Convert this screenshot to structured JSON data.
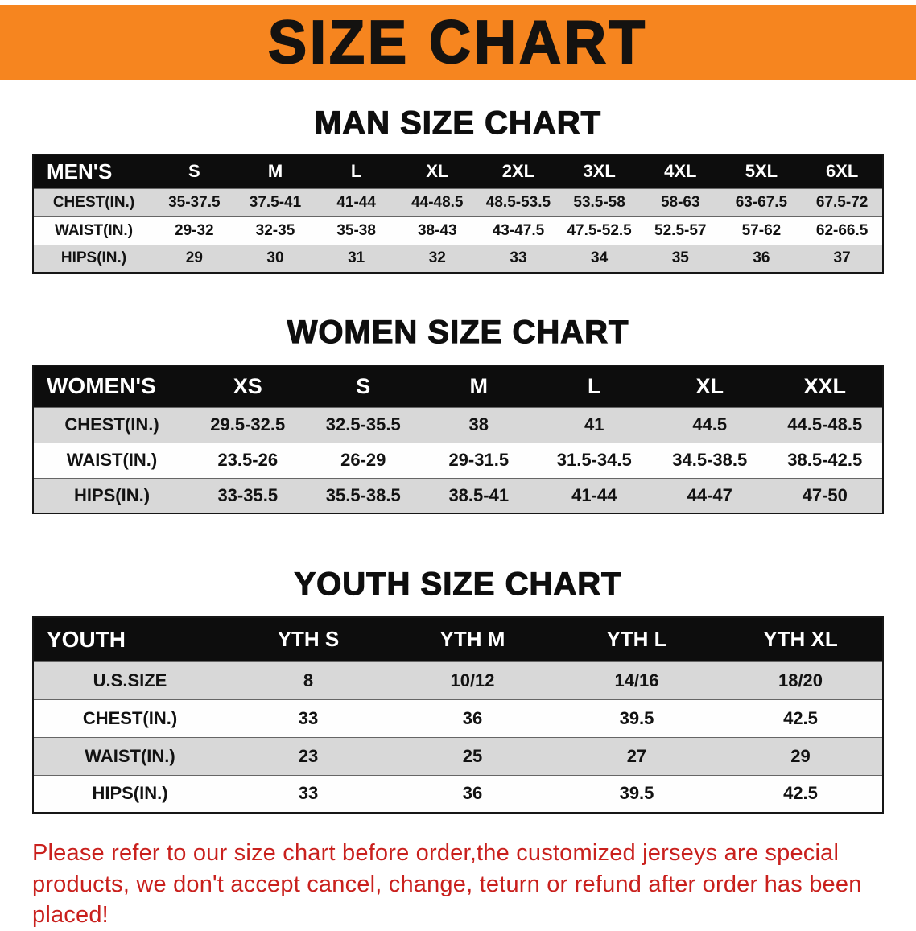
{
  "banner": {
    "title": "SIZE CHART"
  },
  "sections": [
    {
      "heading": "MAN SIZE CHART",
      "table": {
        "header": [
          "MEN'S",
          "S",
          "M",
          "L",
          "XL",
          "2XL",
          "3XL",
          "4XL",
          "5XL",
          "6XL"
        ],
        "rows": [
          [
            "CHEST(IN.)",
            "35-37.5",
            "37.5-41",
            "41-44",
            "44-48.5",
            "48.5-53.5",
            "53.5-58",
            "58-63",
            "63-67.5",
            "67.5-72"
          ],
          [
            "WAIST(IN.)",
            "29-32",
            "32-35",
            "35-38",
            "38-43",
            "43-47.5",
            "47.5-52.5",
            "52.5-57",
            "57-62",
            "62-66.5"
          ],
          [
            "HIPS(IN.)",
            "29",
            "30",
            "31",
            "32",
            "33",
            "34",
            "35",
            "36",
            "37"
          ]
        ]
      }
    },
    {
      "heading": "WOMEN SIZE CHART",
      "table": {
        "header": [
          "WOMEN'S",
          "XS",
          "S",
          "M",
          "L",
          "XL",
          "XXL"
        ],
        "rows": [
          [
            "CHEST(IN.)",
            "29.5-32.5",
            "32.5-35.5",
            "38",
            "41",
            "44.5",
            "44.5-48.5"
          ],
          [
            "WAIST(IN.)",
            "23.5-26",
            "26-29",
            "29-31.5",
            "31.5-34.5",
            "34.5-38.5",
            "38.5-42.5"
          ],
          [
            "HIPS(IN.)",
            "33-35.5",
            "35.5-38.5",
            "38.5-41",
            "41-44",
            "44-47",
            "47-50"
          ]
        ]
      }
    },
    {
      "heading": "YOUTH SIZE CHART",
      "table": {
        "header": [
          "YOUTH",
          "YTH S",
          "YTH M",
          "YTH L",
          "YTH XL"
        ],
        "rows": [
          [
            "U.S.SIZE",
            "8",
            "10/12",
            "14/16",
            "18/20"
          ],
          [
            "CHEST(IN.)",
            "33",
            "36",
            "39.5",
            "42.5"
          ],
          [
            "WAIST(IN.)",
            "23",
            "25",
            "27",
            "29"
          ],
          [
            "HIPS(IN.)",
            "33",
            "36",
            "39.5",
            "42.5"
          ]
        ]
      }
    }
  ],
  "disclaimer": "Please refer to our size chart before order,the customized jerseys are special products, we don't accept cancel, change, teturn or refund after order has been placed!",
  "colors": {
    "banner_orange": "#f6851f",
    "table_header_black": "#0d0d0d",
    "row_gray": "#d8d8d8",
    "disclaimer_red": "#c9201d"
  }
}
